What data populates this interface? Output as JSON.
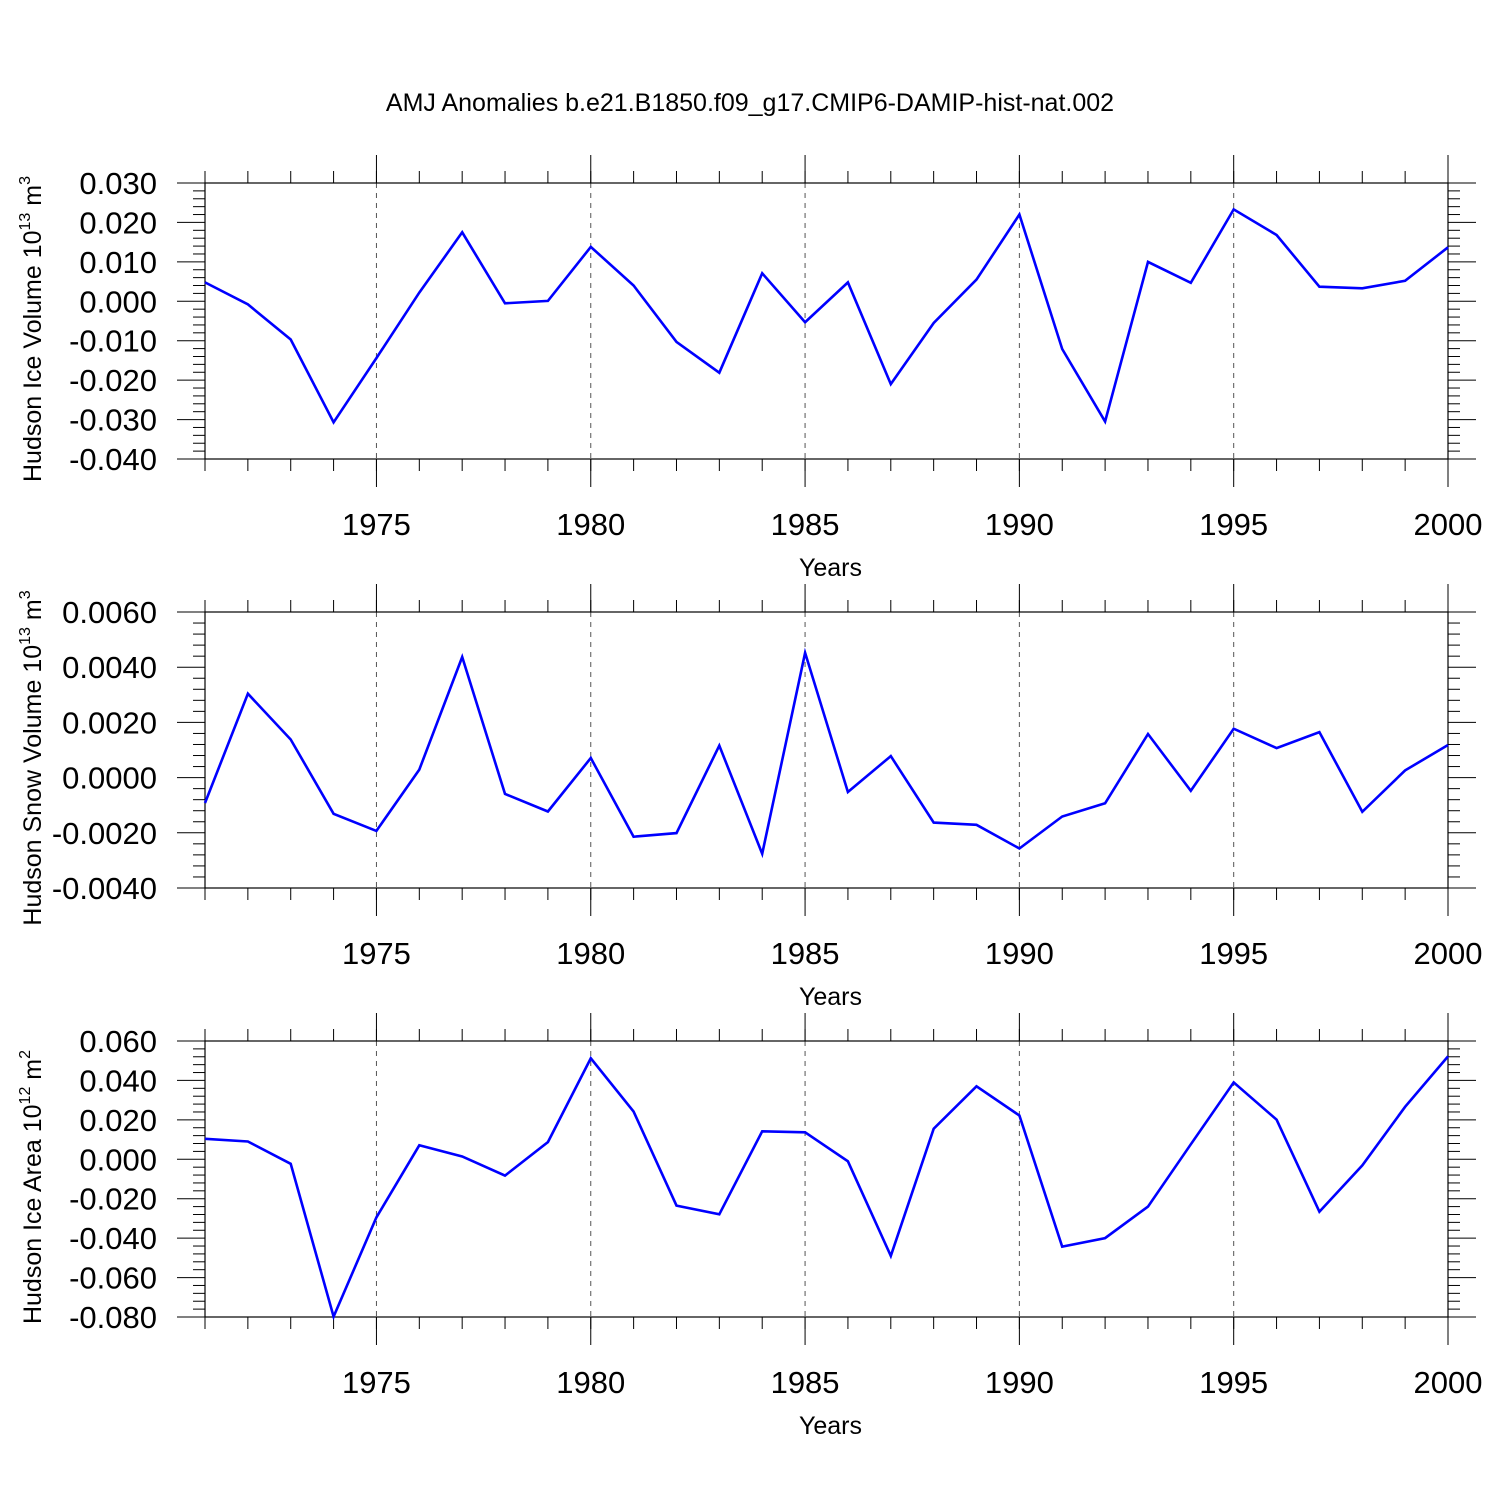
{
  "title": "AMJ Anomalies b.e21.B1850.f09_g17.CMIP6-DAMIP-hist-nat.002",
  "colors": {
    "line": "#0000ff",
    "axis": "#000000",
    "grid": "#555555"
  },
  "chart_data": [
    {
      "type": "line",
      "ylabel": {
        "base": "Hudson Ice Volume 10",
        "exp": "13",
        "unit": " m",
        "unit_exp": "3"
      },
      "xlabel": "Years",
      "xlim": [
        1971,
        2000
      ],
      "x_ticks": [
        1975,
        1980,
        1985,
        1990,
        1995,
        2000
      ],
      "x_tick_labels": [
        "1975",
        "1980",
        "1985",
        "1990",
        "1995",
        "2000"
      ],
      "ylim": [
        -0.04,
        0.03
      ],
      "y_ticks": [
        0.03,
        0.02,
        0.01,
        0.0,
        -0.01,
        -0.02,
        -0.03,
        -0.04
      ],
      "y_tick_labels": [
        "0.030",
        "0.020",
        "0.010",
        "0.000",
        "-0.010",
        "-0.020",
        "-0.030",
        "-0.040"
      ],
      "grid": "vertical dashed at major x ticks",
      "series": [
        {
          "x": [
            1971,
            1972,
            1973,
            1974,
            1975,
            1976,
            1977,
            1978,
            1979,
            1980,
            1981,
            1982,
            1983,
            1984,
            1985,
            1986,
            1987,
            1988,
            1989,
            1990,
            1991,
            1992,
            1993,
            1994,
            1995,
            1996,
            1997,
            1998,
            1999,
            2000
          ],
          "values": [
            0.0048,
            -0.0008,
            -0.0097,
            -0.0307,
            -0.0144,
            0.0022,
            0.0175,
            -0.0005,
            0.0001,
            0.0138,
            0.004,
            -0.0103,
            -0.0181,
            0.0071,
            -0.0053,
            0.0048,
            -0.021,
            -0.0055,
            0.0055,
            0.022,
            -0.0121,
            -0.0305,
            0.01,
            0.0047,
            0.0233,
            0.0168,
            0.0037,
            0.0033,
            0.0052,
            0.0137
          ]
        }
      ]
    },
    {
      "type": "line",
      "ylabel": {
        "base": "Hudson Snow Volume 10",
        "exp": "13",
        "unit": " m",
        "unit_exp": "3"
      },
      "xlabel": "Years",
      "xlim": [
        1971,
        2000
      ],
      "x_ticks": [
        1975,
        1980,
        1985,
        1990,
        1995,
        2000
      ],
      "x_tick_labels": [
        "1975",
        "1980",
        "1985",
        "1990",
        "1995",
        "2000"
      ],
      "ylim": [
        -0.004,
        0.006
      ],
      "y_ticks": [
        0.006,
        0.004,
        0.002,
        0.0,
        -0.002,
        -0.004
      ],
      "y_tick_labels": [
        "0.0060",
        "0.0040",
        "0.0020",
        "0.0000",
        "-0.0020",
        "-0.0040"
      ],
      "grid": "vertical dashed at major x ticks",
      "series": [
        {
          "x": [
            1971,
            1972,
            1973,
            1974,
            1975,
            1976,
            1977,
            1978,
            1979,
            1980,
            1981,
            1982,
            1983,
            1984,
            1985,
            1986,
            1987,
            1988,
            1989,
            1990,
            1991,
            1992,
            1993,
            1994,
            1995,
            1996,
            1997,
            1998,
            1999,
            2000
          ],
          "values": [
            -0.00092,
            0.00304,
            0.00138,
            -0.00131,
            -0.00193,
            0.00029,
            0.00437,
            -0.00059,
            -0.00123,
            0.00071,
            -0.00214,
            -0.00201,
            0.00116,
            -0.00276,
            0.00452,
            -0.00052,
            0.00078,
            -0.00163,
            -0.00171,
            -0.00257,
            -0.00141,
            -0.00093,
            0.00158,
            -0.00048,
            0.00177,
            0.00107,
            0.00165,
            -0.00124,
            0.00026,
            0.00118
          ]
        }
      ]
    },
    {
      "type": "line",
      "ylabel": {
        "base": "Hudson Ice Area 10",
        "exp": "12",
        "unit": " m",
        "unit_exp": "2"
      },
      "xlabel": "Years",
      "xlim": [
        1971,
        2000
      ],
      "x_ticks": [
        1975,
        1980,
        1985,
        1990,
        1995,
        2000
      ],
      "x_tick_labels": [
        "1975",
        "1980",
        "1985",
        "1990",
        "1995",
        "2000"
      ],
      "ylim": [
        -0.08,
        0.06
      ],
      "y_ticks": [
        0.06,
        0.04,
        0.02,
        0.0,
        -0.02,
        -0.04,
        -0.06,
        -0.08
      ],
      "y_tick_labels": [
        "0.060",
        "0.040",
        "0.020",
        "0.000",
        "-0.020",
        "-0.040",
        "-0.060",
        "-0.080"
      ],
      "grid": "vertical dashed at major x ticks",
      "series": [
        {
          "x": [
            1971,
            1972,
            1973,
            1974,
            1975,
            1976,
            1977,
            1978,
            1979,
            1980,
            1981,
            1982,
            1983,
            1984,
            1985,
            1986,
            1987,
            1988,
            1989,
            1990,
            1991,
            1992,
            1993,
            1994,
            1995,
            1996,
            1997,
            1998,
            1999,
            2000
          ],
          "values": [
            0.0104,
            0.009,
            -0.0023,
            -0.0798,
            -0.0295,
            0.0071,
            0.0014,
            -0.0083,
            0.0087,
            0.0512,
            0.0242,
            -0.0235,
            -0.0279,
            0.0142,
            0.0137,
            -0.001,
            -0.049,
            0.0155,
            0.037,
            0.0222,
            -0.0443,
            -0.04,
            -0.024,
            0.0076,
            0.039,
            0.0201,
            -0.0266,
            -0.0031,
            0.0266,
            0.0522
          ]
        }
      ]
    }
  ]
}
